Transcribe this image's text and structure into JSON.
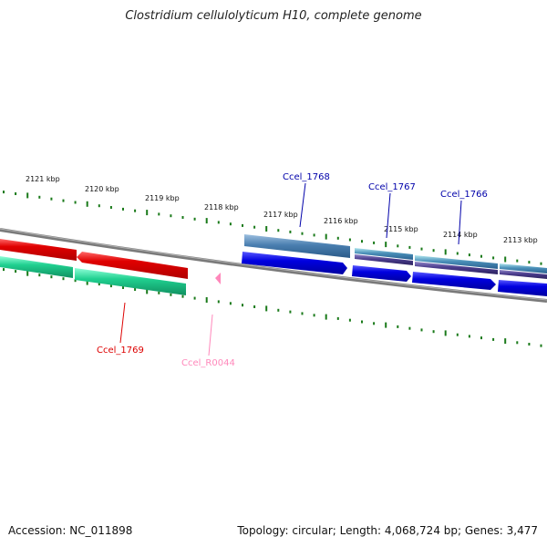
{
  "title": "Clostridium cellulolyticum H10, complete genome",
  "footer": {
    "accession": "Accession: NC_011898",
    "topology": "Topology: circular; Length: 4,068,724 bp; Genes: 3,477"
  },
  "colors": {
    "backbone": "#808080",
    "tick": "#1a7a1a",
    "red_gene": "#e00000",
    "teal_gene": "#20d090",
    "blue_gene": "#0000e0",
    "steel_gene": "#4a7fb0",
    "purple_gene": "#4a3c8c",
    "rna": "#ff88bb",
    "label_red": "#dd0000",
    "label_blue": "#0000aa",
    "label_pink": "#ff88bb"
  },
  "ticks": [
    {
      "label": "2121 kbp"
    },
    {
      "label": "2120 kbp"
    },
    {
      "label": "2119 kbp"
    },
    {
      "label": "2118 kbp"
    },
    {
      "label": "2117 kbp"
    },
    {
      "label": "2116 kbp"
    },
    {
      "label": "2115 kbp"
    },
    {
      "label": "2114 kbp"
    },
    {
      "label": "2113 kbp"
    }
  ],
  "genes": [
    {
      "label": "Ccel_1768",
      "color": "label_blue"
    },
    {
      "label": "Ccel_1767",
      "color": "label_blue"
    },
    {
      "label": "Ccel_1766",
      "color": "label_blue"
    },
    {
      "label": "Ccel_1769",
      "color": "label_red"
    },
    {
      "label": "Ccel_R0044",
      "color": "label_pink"
    }
  ]
}
